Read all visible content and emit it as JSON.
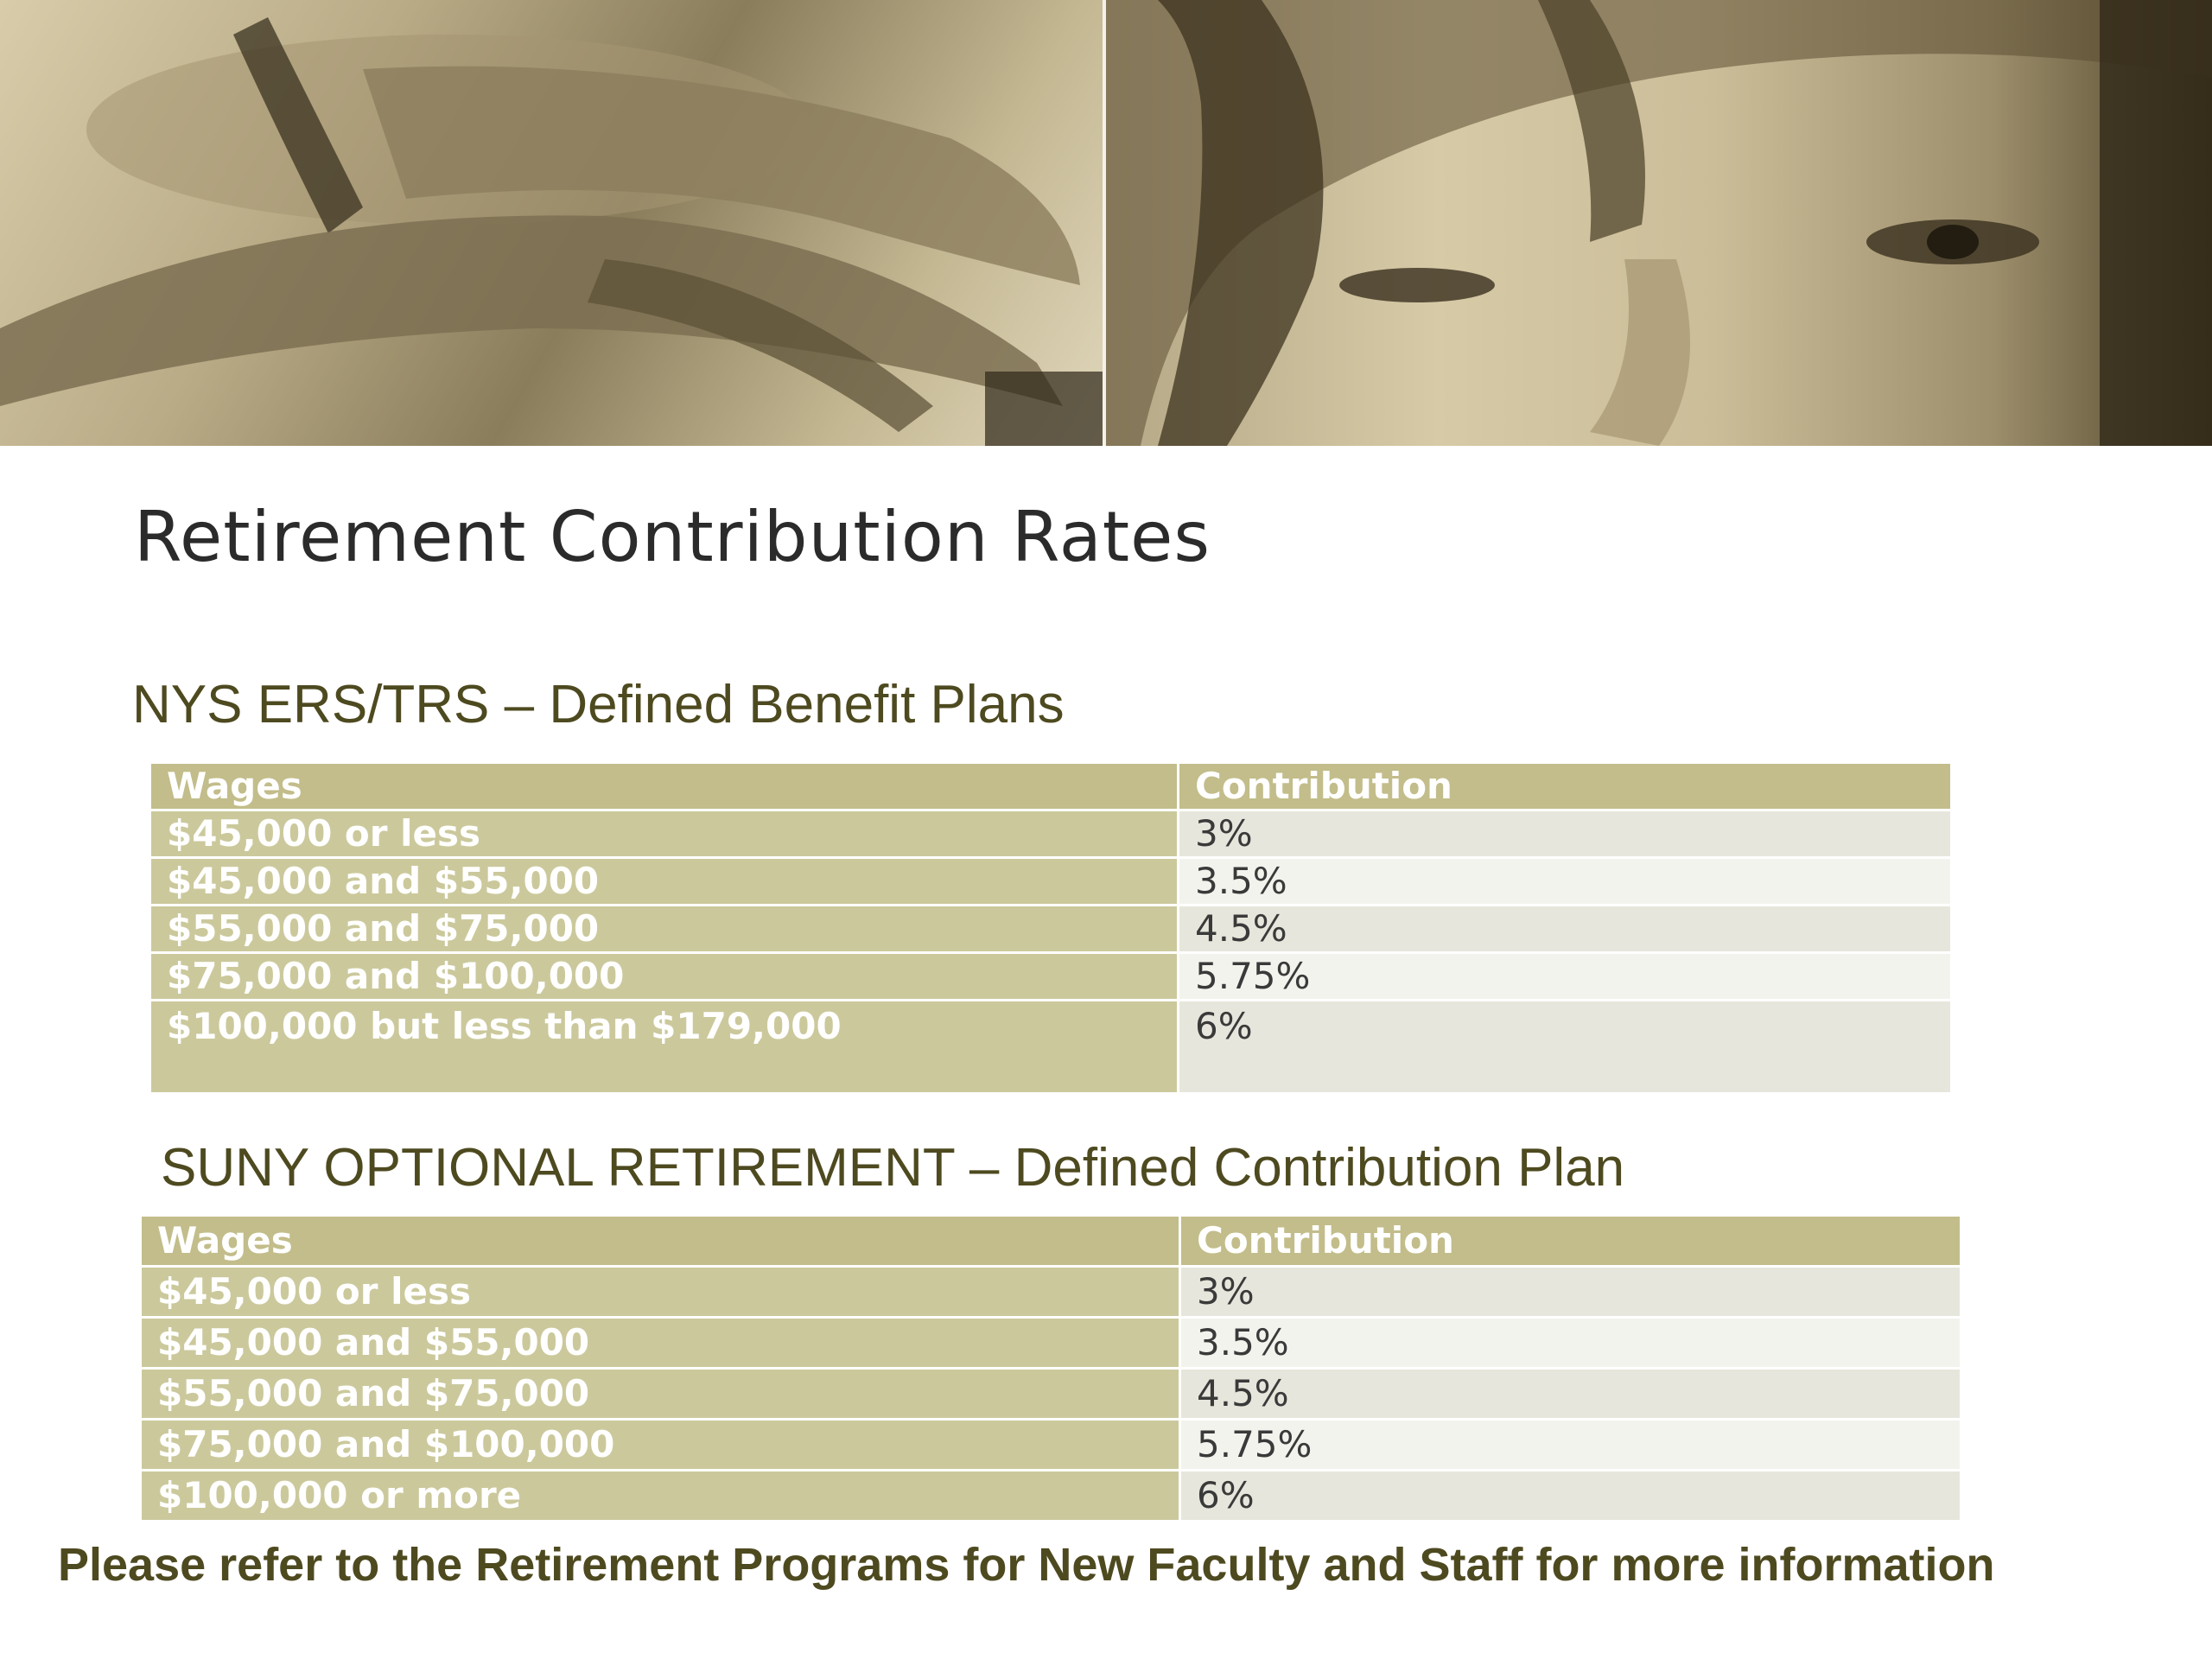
{
  "title": "Retirement Contribution Rates",
  "sections": [
    {
      "heading": "NYS ERS/TRS – Defined Benefit Plans",
      "columns": [
        "Wages",
        "Contribution"
      ],
      "rows": [
        {
          "wages": "$45,000 or less",
          "contribution": "3%"
        },
        {
          "wages": "$45,000 and $55,000",
          "contribution": "3.5%"
        },
        {
          "wages": "$55,000 and $75,000",
          "contribution": "4.5%"
        },
        {
          "wages": "$75,000 and $100,000",
          "contribution": "5.75%"
        },
        {
          "wages": "$100,000 but less than $179,000",
          "contribution": "6%"
        }
      ]
    },
    {
      "heading": "SUNY OPTIONAL RETIREMENT – Defined Contribution Plan",
      "columns": [
        "Wages",
        "Contribution"
      ],
      "rows": [
        {
          "wages": "$45,000 or less",
          "contribution": "3%"
        },
        {
          "wages": "$45,000 and $55,000",
          "contribution": "3.5%"
        },
        {
          "wages": "$55,000 and $75,000",
          "contribution": "4.5%"
        },
        {
          "wages": "$75,000 and $100,000",
          "contribution": "5.75%"
        },
        {
          "wages": "$100,000 or more",
          "contribution": "6%"
        }
      ]
    }
  ],
  "footer": "Please refer to the Retirement Programs for New Faculty and Staff for more information",
  "banner": {
    "left_photo": "hands-on-keyboard-photo",
    "right_photo": "woman-face-photo"
  },
  "colors": {
    "header_cell": "#c2bd8a",
    "wage_cell": "#cbc99c",
    "rate_cell_odd": "#e7e6dc",
    "rate_cell_even": "#f3f3ee",
    "heading_text": "#4e4a20",
    "title_text": "#2b2b2b"
  }
}
